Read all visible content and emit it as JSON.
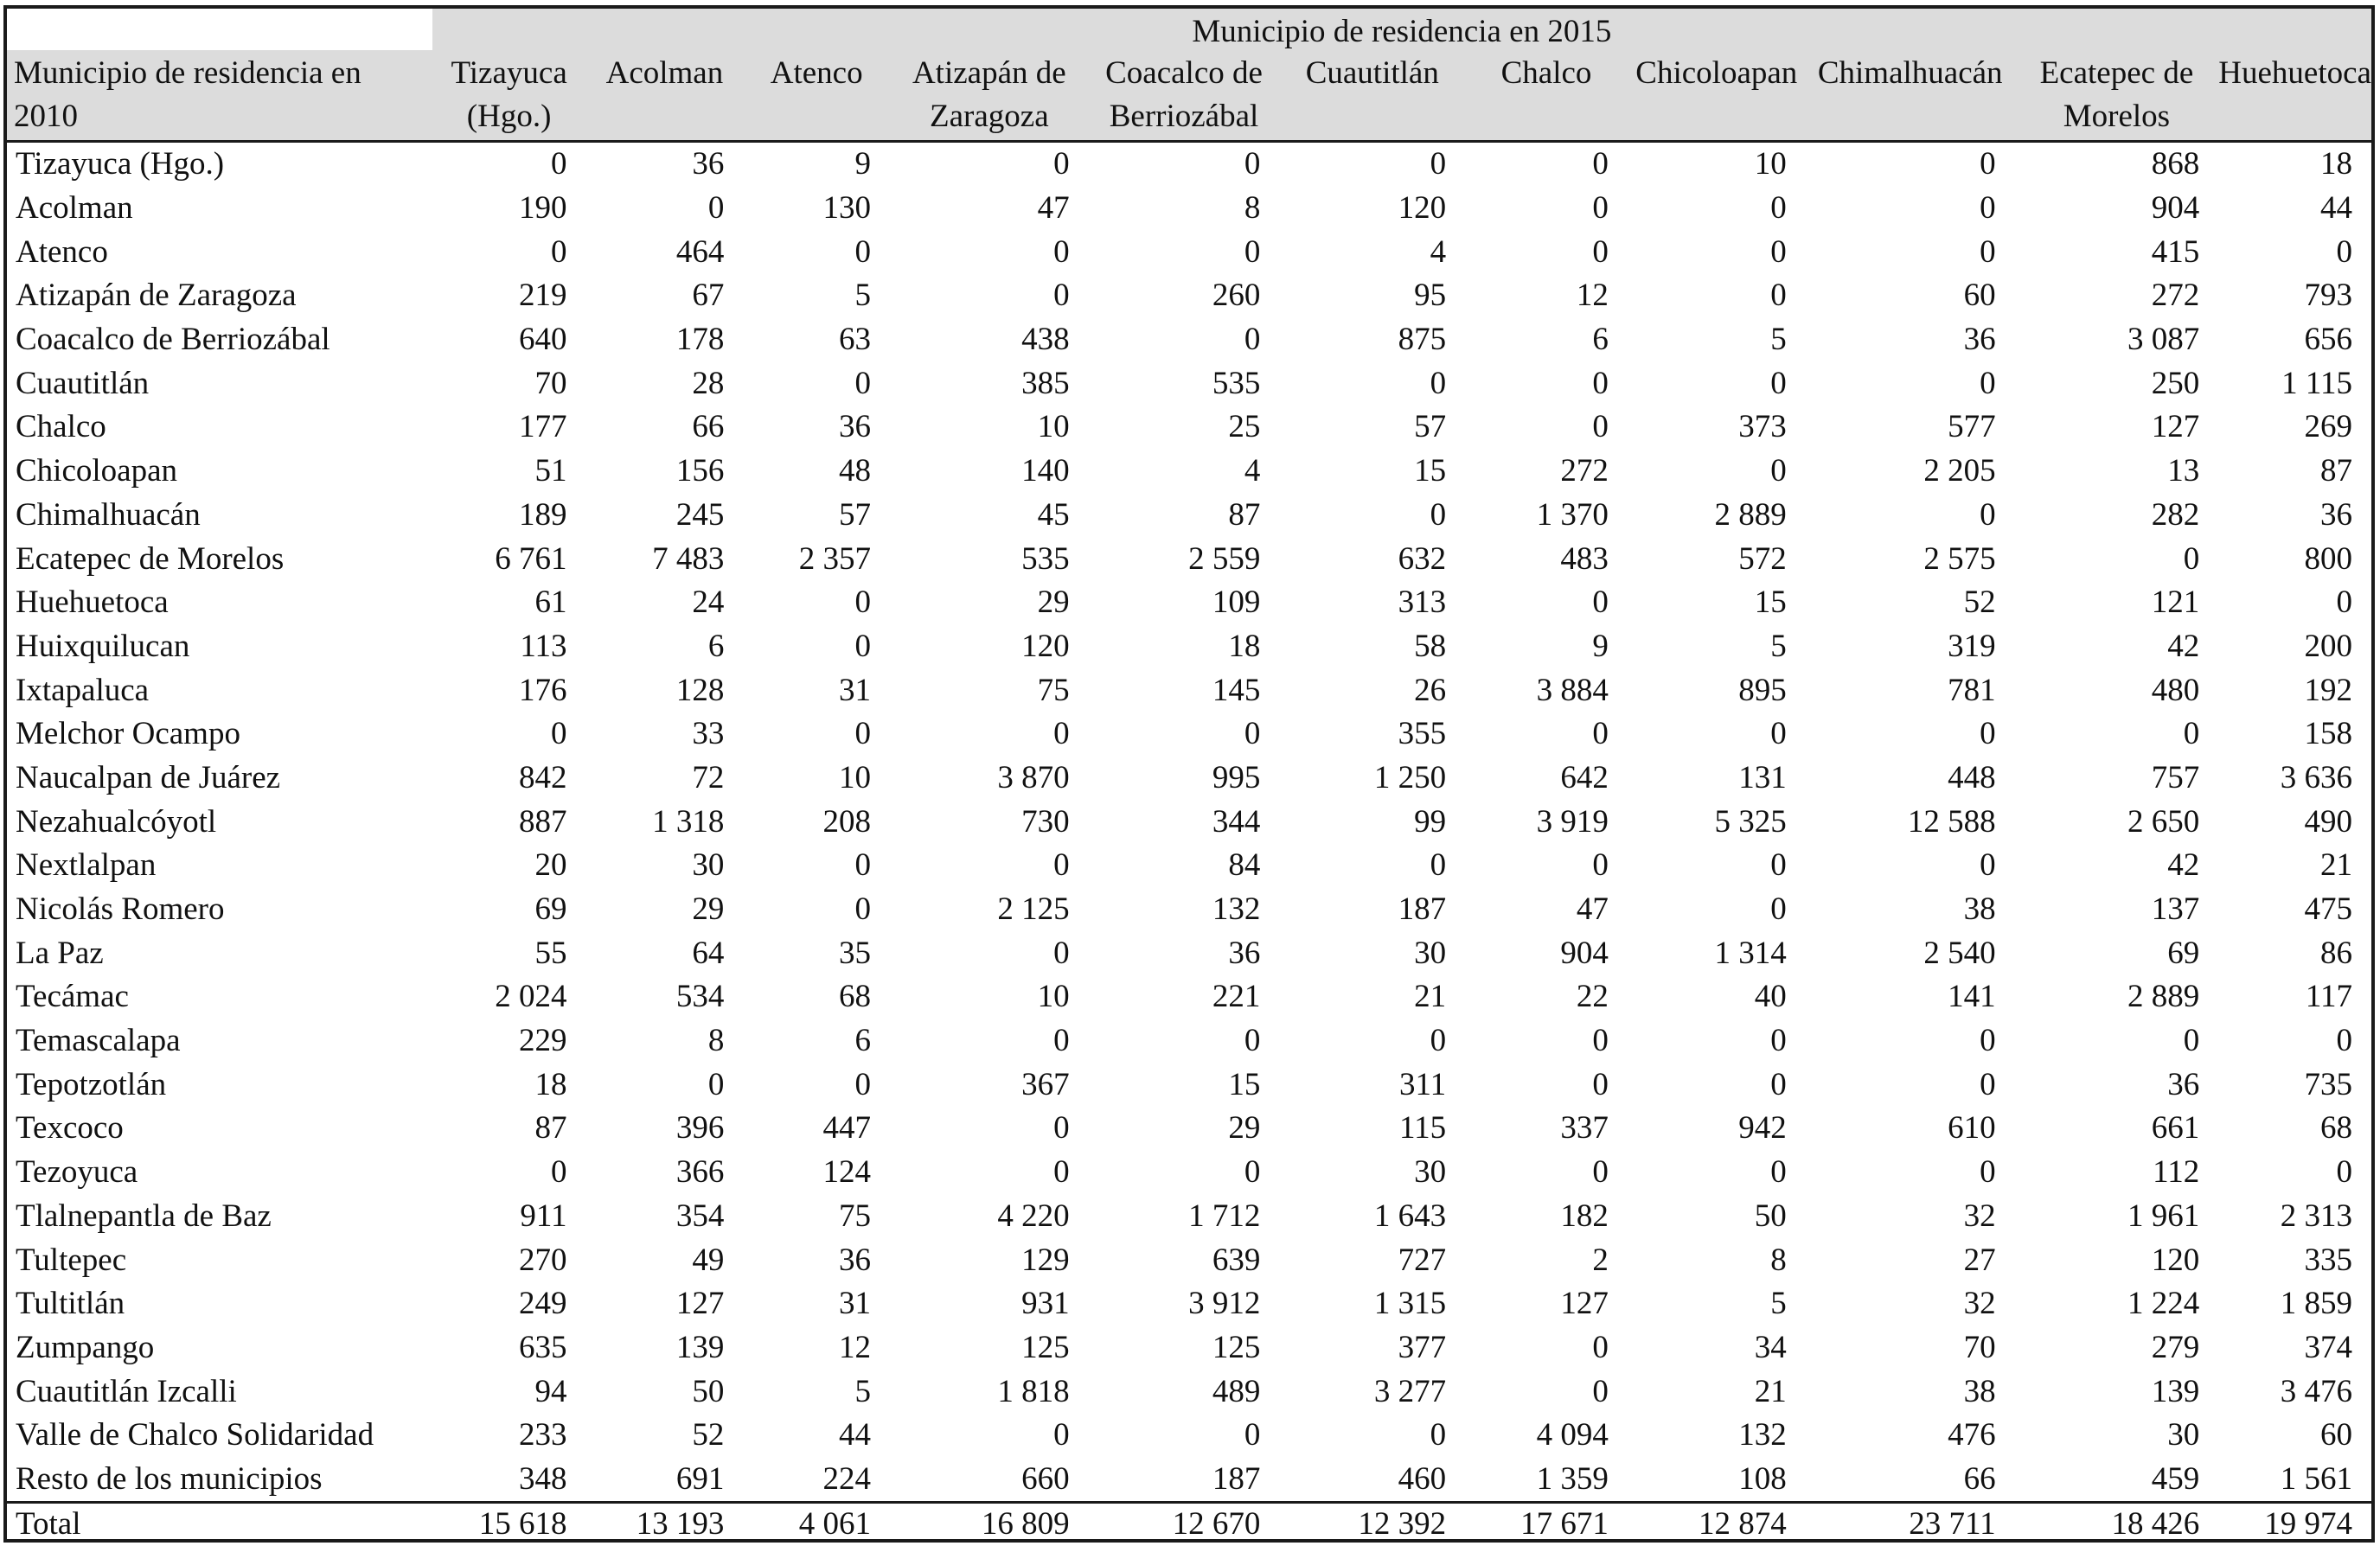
{
  "table": {
    "super_header": "Municipio de residencia en 2015",
    "row_header": "Municipio de residencia en 2010",
    "columns": [
      "Tizayuca (Hgo.)",
      "Acolman",
      "Atenco",
      "Atizapán de Zaragoza",
      "Coacalco de Berriozábal",
      "Cuautitlán",
      "Chalco",
      "Chicoloapan",
      "Chimalhuacán",
      "Ecatepec de Morelos",
      "Huehuetoca"
    ],
    "rows": [
      {
        "name": "Tizayuca (Hgo.)",
        "values": [
          "0",
          "36",
          "9",
          "0",
          "0",
          "0",
          "0",
          "10",
          "0",
          "868",
          "18"
        ]
      },
      {
        "name": "Acolman",
        "values": [
          "190",
          "0",
          "130",
          "47",
          "8",
          "120",
          "0",
          "0",
          "0",
          "904",
          "44"
        ]
      },
      {
        "name": "Atenco",
        "values": [
          "0",
          "464",
          "0",
          "0",
          "0",
          "4",
          "0",
          "0",
          "0",
          "415",
          "0"
        ]
      },
      {
        "name": "Atizapán de Zaragoza",
        "values": [
          "219",
          "67",
          "5",
          "0",
          "260",
          "95",
          "12",
          "0",
          "60",
          "272",
          "793"
        ]
      },
      {
        "name": "Coacalco de Berriozábal",
        "values": [
          "640",
          "178",
          "63",
          "438",
          "0",
          "875",
          "6",
          "5",
          "36",
          "3 087",
          "656"
        ]
      },
      {
        "name": "Cuautitlán",
        "values": [
          "70",
          "28",
          "0",
          "385",
          "535",
          "0",
          "0",
          "0",
          "0",
          "250",
          "1 115"
        ]
      },
      {
        "name": "Chalco",
        "values": [
          "177",
          "66",
          "36",
          "10",
          "25",
          "57",
          "0",
          "373",
          "577",
          "127",
          "269"
        ]
      },
      {
        "name": "Chicoloapan",
        "values": [
          "51",
          "156",
          "48",
          "140",
          "4",
          "15",
          "272",
          "0",
          "2 205",
          "13",
          "87"
        ]
      },
      {
        "name": "Chimalhuacán",
        "values": [
          "189",
          "245",
          "57",
          "45",
          "87",
          "0",
          "1 370",
          "2 889",
          "0",
          "282",
          "36"
        ]
      },
      {
        "name": "Ecatepec de Morelos",
        "values": [
          "6 761",
          "7 483",
          "2 357",
          "535",
          "2 559",
          "632",
          "483",
          "572",
          "2 575",
          "0",
          "800"
        ]
      },
      {
        "name": "Huehuetoca",
        "values": [
          "61",
          "24",
          "0",
          "29",
          "109",
          "313",
          "0",
          "15",
          "52",
          "121",
          "0"
        ]
      },
      {
        "name": "Huixquilucan",
        "values": [
          "113",
          "6",
          "0",
          "120",
          "18",
          "58",
          "9",
          "5",
          "319",
          "42",
          "200"
        ]
      },
      {
        "name": "Ixtapaluca",
        "values": [
          "176",
          "128",
          "31",
          "75",
          "145",
          "26",
          "3 884",
          "895",
          "781",
          "480",
          "192"
        ]
      },
      {
        "name": "Melchor Ocampo",
        "values": [
          "0",
          "33",
          "0",
          "0",
          "0",
          "355",
          "0",
          "0",
          "0",
          "0",
          "158"
        ]
      },
      {
        "name": "Naucalpan de Juárez",
        "values": [
          "842",
          "72",
          "10",
          "3 870",
          "995",
          "1 250",
          "642",
          "131",
          "448",
          "757",
          "3 636"
        ]
      },
      {
        "name": "Nezahualcóyotl",
        "values": [
          "887",
          "1 318",
          "208",
          "730",
          "344",
          "99",
          "3 919",
          "5 325",
          "12 588",
          "2 650",
          "490"
        ]
      },
      {
        "name": "Nextlalpan",
        "values": [
          "20",
          "30",
          "0",
          "0",
          "84",
          "0",
          "0",
          "0",
          "0",
          "42",
          "21"
        ]
      },
      {
        "name": "Nicolás Romero",
        "values": [
          "69",
          "29",
          "0",
          "2 125",
          "132",
          "187",
          "47",
          "0",
          "38",
          "137",
          "475"
        ]
      },
      {
        "name": "La Paz",
        "values": [
          "55",
          "64",
          "35",
          "0",
          "36",
          "30",
          "904",
          "1 314",
          "2 540",
          "69",
          "86"
        ]
      },
      {
        "name": "Tecámac",
        "values": [
          "2 024",
          "534",
          "68",
          "10",
          "221",
          "21",
          "22",
          "40",
          "141",
          "2 889",
          "117"
        ]
      },
      {
        "name": "Temascalapa",
        "values": [
          "229",
          "8",
          "6",
          "0",
          "0",
          "0",
          "0",
          "0",
          "0",
          "0",
          "0"
        ]
      },
      {
        "name": "Tepotzotlán",
        "values": [
          "18",
          "0",
          "0",
          "367",
          "15",
          "311",
          "0",
          "0",
          "0",
          "36",
          "735"
        ]
      },
      {
        "name": "Texcoco",
        "values": [
          "87",
          "396",
          "447",
          "0",
          "29",
          "115",
          "337",
          "942",
          "610",
          "661",
          "68"
        ]
      },
      {
        "name": "Tezoyuca",
        "values": [
          "0",
          "366",
          "124",
          "0",
          "0",
          "30",
          "0",
          "0",
          "0",
          "112",
          "0"
        ]
      },
      {
        "name": "Tlalnepantla de Baz",
        "values": [
          "911",
          "354",
          "75",
          "4 220",
          "1 712",
          "1 643",
          "182",
          "50",
          "32",
          "1 961",
          "2 313"
        ]
      },
      {
        "name": "Tultepec",
        "values": [
          "270",
          "49",
          "36",
          "129",
          "639",
          "727",
          "2",
          "8",
          "27",
          "120",
          "335"
        ]
      },
      {
        "name": "Tultitlán",
        "values": [
          "249",
          "127",
          "31",
          "931",
          "3 912",
          "1 315",
          "127",
          "5",
          "32",
          "1 224",
          "1 859"
        ]
      },
      {
        "name": "Zumpango",
        "values": [
          "635",
          "139",
          "12",
          "125",
          "125",
          "377",
          "0",
          "34",
          "70",
          "279",
          "374"
        ]
      },
      {
        "name": "Cuautitlán Izcalli",
        "values": [
          "94",
          "50",
          "5",
          "1 818",
          "489",
          "3 277",
          "0",
          "21",
          "38",
          "139",
          "3 476"
        ]
      },
      {
        "name": "Valle de Chalco Solidaridad",
        "values": [
          "233",
          "52",
          "44",
          "0",
          "0",
          "0",
          "4 094",
          "132",
          "476",
          "30",
          "60"
        ]
      },
      {
        "name": "Resto de los municipios",
        "values": [
          "348",
          "691",
          "224",
          "660",
          "187",
          "460",
          "1 359",
          "108",
          "66",
          "459",
          "1 561"
        ]
      }
    ],
    "total": {
      "name": "Total",
      "values": [
        "15 618",
        "13 193",
        "4 061",
        "16 809",
        "12 670",
        "12 392",
        "17 671",
        "12 874",
        "23 711",
        "18 426",
        "19 974"
      ]
    }
  }
}
